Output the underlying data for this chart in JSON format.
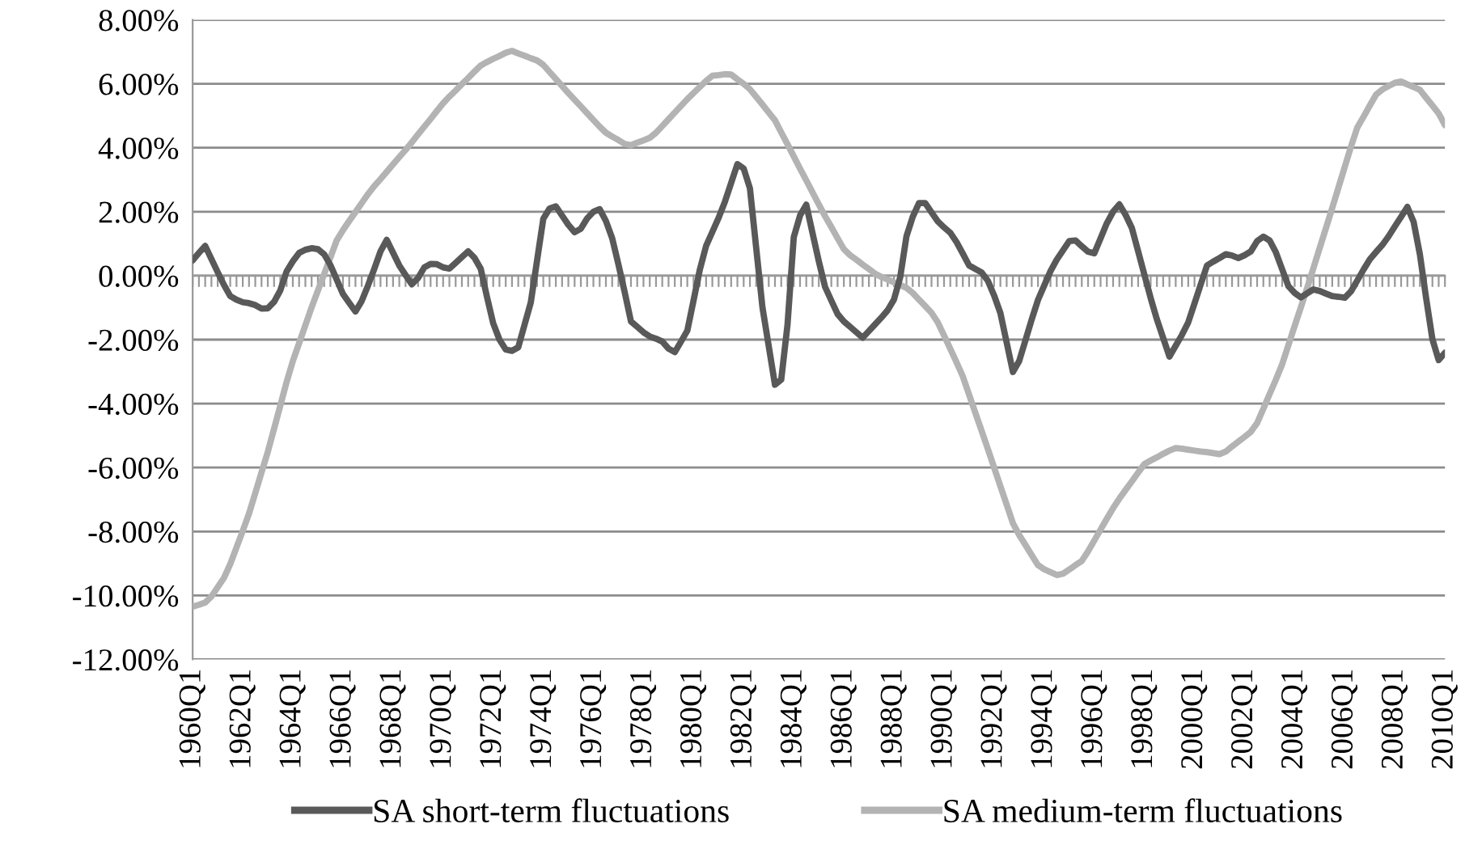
{
  "chart_data": {
    "type": "line",
    "ylim": [
      -12,
      8
    ],
    "categories": [
      "1960Q1",
      null,
      null,
      null,
      null,
      null,
      null,
      null,
      "1962Q1",
      null,
      null,
      null,
      null,
      null,
      null,
      null,
      "1964Q1",
      null,
      null,
      null,
      null,
      null,
      null,
      null,
      "1966Q1",
      null,
      null,
      null,
      null,
      null,
      null,
      null,
      "1968Q1",
      null,
      null,
      null,
      null,
      null,
      null,
      null,
      "1970Q1",
      null,
      null,
      null,
      null,
      null,
      null,
      null,
      "1972Q1",
      null,
      null,
      null,
      null,
      null,
      null,
      null,
      "1974Q1",
      null,
      null,
      null,
      null,
      null,
      null,
      null,
      "1976Q1",
      null,
      null,
      null,
      null,
      null,
      null,
      null,
      "1978Q1",
      null,
      null,
      null,
      null,
      null,
      null,
      null,
      "1980Q1",
      null,
      null,
      null,
      null,
      null,
      null,
      null,
      "1982Q1",
      null,
      null,
      null,
      null,
      null,
      null,
      null,
      "1984Q1",
      null,
      null,
      null,
      null,
      null,
      null,
      null,
      "1986Q1",
      null,
      null,
      null,
      null,
      null,
      null,
      null,
      "1988Q1",
      null,
      null,
      null,
      null,
      null,
      null,
      null,
      "1990Q1",
      null,
      null,
      null,
      null,
      null,
      null,
      null,
      "1992Q1",
      null,
      null,
      null,
      null,
      null,
      null,
      null,
      "1994Q1",
      null,
      null,
      null,
      null,
      null,
      null,
      null,
      "1996Q1",
      null,
      null,
      null,
      null,
      null,
      null,
      null,
      "1998Q1",
      null,
      null,
      null,
      null,
      null,
      null,
      null,
      "2000Q1",
      null,
      null,
      null,
      null,
      null,
      null,
      null,
      "2002Q1",
      null,
      null,
      null,
      null,
      null,
      null,
      null,
      "2004Q1",
      null,
      null,
      null,
      null,
      null,
      null,
      null,
      "2006Q1",
      null,
      null,
      null,
      null,
      null,
      null,
      null,
      "2008Q1",
      null,
      null,
      null,
      null,
      null,
      null,
      null,
      "2010Q1"
    ],
    "yticks": [
      {
        "value": 8,
        "label": "8.00%"
      },
      {
        "value": 6,
        "label": "6.00%"
      },
      {
        "value": 4,
        "label": "4.00%"
      },
      {
        "value": 2,
        "label": "2.00%"
      },
      {
        "value": 0,
        "label": "0.00%"
      },
      {
        "value": -2,
        "label": "-2.00%"
      },
      {
        "value": -4,
        "label": "-4.00%"
      },
      {
        "value": -6,
        "label": "-6.00%"
      },
      {
        "value": -8,
        "label": "-8.00%"
      },
      {
        "value": -10,
        "label": "-10.00%"
      },
      {
        "value": -12,
        "label": "-12.00%"
      }
    ],
    "grid": "y",
    "legend": "bottom",
    "marker": "none",
    "line_style": "solid",
    "series": [
      {
        "name": "SA short-term fluctuations",
        "color": "#595959",
        "values": [
          0.48,
          0.71,
          0.93,
          0.52,
          0.11,
          -0.29,
          -0.64,
          -0.75,
          -0.83,
          -0.86,
          -0.92,
          -1.03,
          -1.02,
          -0.82,
          -0.46,
          0.13,
          0.45,
          0.71,
          0.81,
          0.86,
          0.83,
          0.67,
          0.33,
          -0.12,
          -0.57,
          -0.85,
          -1.12,
          -0.79,
          -0.31,
          0.21,
          0.76,
          1.12,
          0.72,
          0.32,
          0.02,
          -0.27,
          -0.07,
          0.26,
          0.37,
          0.36,
          0.26,
          0.22,
          0.4,
          0.58,
          0.76,
          0.56,
          0.22,
          -0.66,
          -1.49,
          -2,
          -2.31,
          -2.35,
          -2.24,
          -1.54,
          -0.84,
          0.47,
          1.78,
          2.1,
          2.17,
          1.88,
          1.59,
          1.36,
          1.47,
          1.79,
          2,
          2.08,
          1.71,
          1.17,
          0.35,
          -0.52,
          -1.43,
          -1.6,
          -1.77,
          -1.9,
          -1.97,
          -2.06,
          -2.28,
          -2.39,
          -2.06,
          -1.72,
          -0.77,
          0.19,
          0.93,
          1.37,
          1.81,
          2.31,
          2.9,
          3.49,
          3.35,
          2.73,
          0.87,
          -0.99,
          -2.2,
          -3.41,
          -3.25,
          -1.54,
          1.2,
          1.88,
          2.22,
          1.33,
          0.45,
          -0.35,
          -0.78,
          -1.2,
          -1.43,
          -1.6,
          -1.77,
          -1.94,
          -1.73,
          -1.52,
          -1.31,
          -1.08,
          -0.75,
          -0.05,
          1.23,
          1.84,
          2.27,
          2.27,
          1.98,
          1.7,
          1.51,
          1.34,
          1.05,
          0.69,
          0.32,
          0.21,
          0.1,
          -0.16,
          -0.62,
          -1.17,
          -2.09,
          -3.01,
          -2.67,
          -2.02,
          -1.37,
          -0.76,
          -0.31,
          0.14,
          0.5,
          0.79,
          1.08,
          1.1,
          0.92,
          0.75,
          0.7,
          1.17,
          1.64,
          2,
          2.23,
          1.9,
          1.49,
          0.76,
          0.03,
          -0.7,
          -1.37,
          -1.95,
          -2.53,
          -2.19,
          -1.85,
          -1.46,
          -0.87,
          -0.27,
          0.32,
          0.44,
          0.55,
          0.67,
          0.63,
          0.55,
          0.64,
          0.76,
          1.08,
          1.22,
          1.1,
          0.73,
          0.2,
          -0.33,
          -0.54,
          -0.68,
          -0.55,
          -0.43,
          -0.48,
          -0.56,
          -0.64,
          -0.66,
          -0.69,
          -0.49,
          -0.15,
          0.19,
          0.51,
          0.74,
          0.96,
          1.23,
          1.54,
          1.84,
          2.15,
          1.68,
          0.66,
          -0.71,
          -1.99,
          -2.64,
          -2.41
        ]
      },
      {
        "name": "SA medium-term fluctuations",
        "color": "#b3b3b3",
        "values": [
          -10.35,
          -10.29,
          -10.22,
          -10.03,
          -9.74,
          -9.45,
          -9.02,
          -8.5,
          -7.98,
          -7.44,
          -6.8,
          -6.15,
          -5.51,
          -4.79,
          -4.06,
          -3.33,
          -2.67,
          -2.11,
          -1.55,
          -0.99,
          -0.47,
          0.05,
          0.57,
          1.1,
          1.42,
          1.71,
          1.99,
          2.27,
          2.55,
          2.8,
          3.02,
          3.25,
          3.48,
          3.71,
          3.93,
          4.17,
          4.42,
          4.66,
          4.9,
          5.15,
          5.39,
          5.6,
          5.79,
          5.99,
          6.18,
          6.38,
          6.57,
          6.68,
          6.78,
          6.87,
          6.97,
          7.03,
          6.95,
          6.88,
          6.8,
          6.73,
          6.59,
          6.37,
          6.15,
          5.93,
          5.71,
          5.5,
          5.29,
          5.08,
          4.87,
          4.66,
          4.47,
          4.35,
          4.24,
          4.12,
          4.08,
          4.16,
          4.23,
          4.31,
          4.47,
          4.68,
          4.89,
          5.1,
          5.31,
          5.52,
          5.71,
          5.9,
          6.09,
          6.25,
          6.27,
          6.3,
          6.29,
          6.14,
          6,
          5.83,
          5.59,
          5.35,
          5.1,
          4.86,
          4.48,
          4.11,
          3.73,
          3.35,
          2.98,
          2.6,
          2.23,
          1.86,
          1.52,
          1.17,
          0.83,
          0.64,
          0.5,
          0.35,
          0.21,
          0.06,
          -0.04,
          -0.12,
          -0.21,
          -0.29,
          -0.38,
          -0.54,
          -0.75,
          -0.95,
          -1.16,
          -1.46,
          -1.87,
          -2.29,
          -2.71,
          -3.15,
          -3.72,
          -4.29,
          -4.85,
          -5.42,
          -6,
          -6.58,
          -7.16,
          -7.74,
          -8.11,
          -8.42,
          -8.74,
          -9.05,
          -9.18,
          -9.27,
          -9.36,
          -9.32,
          -9.19,
          -9.05,
          -8.92,
          -8.62,
          -8.28,
          -7.94,
          -7.6,
          -7.27,
          -6.97,
          -6.7,
          -6.43,
          -6.16,
          -5.89,
          -5.78,
          -5.68,
          -5.57,
          -5.47,
          -5.39,
          -5.41,
          -5.44,
          -5.47,
          -5.5,
          -5.52,
          -5.55,
          -5.58,
          -5.5,
          -5.34,
          -5.19,
          -5.04,
          -4.88,
          -4.61,
          -4.16,
          -3.7,
          -3.25,
          -2.77,
          -2.17,
          -1.57,
          -0.98,
          -0.38,
          0.24,
          0.87,
          1.49,
          2.12,
          2.76,
          3.4,
          4.04,
          4.63,
          4.97,
          5.32,
          5.66,
          5.82,
          5.93,
          6.03,
          6.07,
          5.98,
          5.9,
          5.81,
          5.56,
          5.32,
          5.07,
          4.71
        ]
      }
    ]
  }
}
